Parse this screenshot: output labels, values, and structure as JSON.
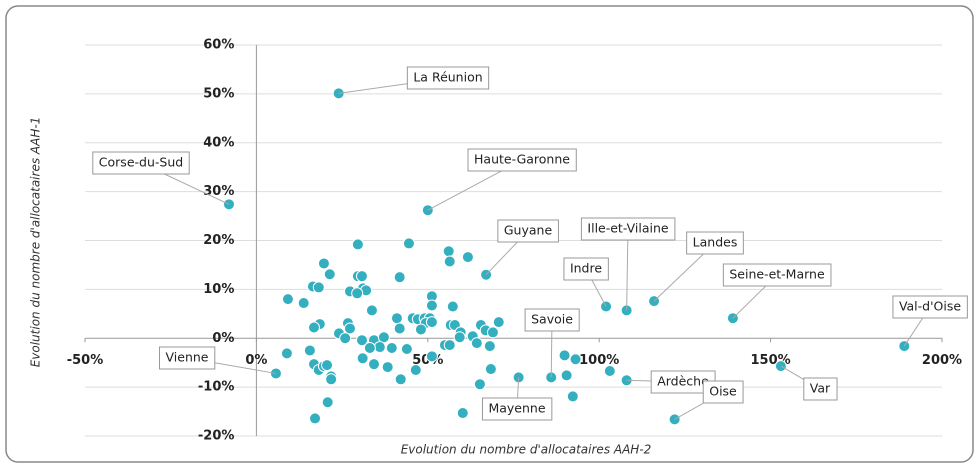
{
  "chart_data": {
    "type": "scatter",
    "x_label": "Evolution du nombre d'allocataires AAH-2",
    "y_label": "Evolution du nombre d'allocataires AAH-1",
    "color": "#33afbf",
    "grid": true,
    "xlim": [
      -50,
      200
    ],
    "ylim": [
      -20,
      60
    ],
    "xticks": [
      {
        "value": -50,
        "label": "-50%"
      },
      {
        "value": 0,
        "label": "0%"
      },
      {
        "value": 50,
        "label": "50%"
      },
      {
        "value": 100,
        "label": "100%"
      },
      {
        "value": 150,
        "label": "150%"
      },
      {
        "value": 200,
        "label": "200%"
      }
    ],
    "yticks": [
      {
        "value": -20,
        "label": "-20%"
      },
      {
        "value": -10,
        "label": "-10%"
      },
      {
        "value": 0,
        "label": "0%"
      },
      {
        "value": 10,
        "label": "10%"
      },
      {
        "value": 20,
        "label": "20%"
      },
      {
        "value": 30,
        "label": "30%"
      },
      {
        "value": 40,
        "label": "40%"
      },
      {
        "value": 50,
        "label": "50%"
      },
      {
        "value": 60,
        "label": "60%"
      }
    ],
    "labels": [
      "La Réunion",
      "Corse-du-Sud",
      "Haute-Garonne",
      "Guyane",
      "Indre",
      "Ille-et-Vilaine",
      "Landes",
      "Seine-et-Marne",
      "Val-d'Oise",
      "Vienne",
      "Savoie",
      "Ardèche",
      "Var",
      "Oise",
      "Mayenne",
      null,
      null,
      null,
      null,
      null,
      null,
      null,
      null,
      null,
      null,
      null,
      null,
      null,
      null,
      null,
      null,
      null,
      null,
      null,
      null,
      null,
      null,
      null,
      null,
      null,
      null,
      null,
      null,
      null,
      null,
      null,
      null,
      null,
      null,
      null,
      null,
      null,
      null,
      null,
      null,
      null,
      null,
      null,
      null,
      null,
      null,
      null,
      null,
      null,
      null,
      null,
      null,
      null,
      null,
      null,
      null,
      null,
      null,
      null,
      null,
      null,
      null,
      null,
      null,
      null,
      null,
      null,
      null,
      null,
      null,
      null,
      null,
      null,
      null,
      null,
      null,
      null,
      null,
      null,
      null,
      null
    ],
    "x": [
      24,
      -8,
      50,
      67,
      102,
      108,
      116,
      139,
      189,
      5.7,
      86,
      108,
      153,
      122,
      76.5,
      29.6,
      44.5,
      56.1,
      56.4,
      61.7,
      19.7,
      21.4,
      29.6,
      30.8,
      41.8,
      31.1,
      32,
      16.5,
      18.2,
      27.3,
      29.4,
      9.2,
      13.8,
      51.2,
      51.2,
      57.3,
      33.7,
      18.5,
      16.8,
      26.7,
      27.3,
      24.1,
      25.9,
      30.8,
      34.3,
      37.2,
      36,
      33.1,
      41,
      41.8,
      45.6,
      47.1,
      49.1,
      50.6,
      49.4,
      48,
      51.2,
      39.5,
      43.9,
      55,
      56.7,
      57.9,
      59.6,
      59.3,
      63.1,
      64.3,
      65.5,
      66.9,
      68.1,
      69,
      70.7,
      56.4,
      51.2,
      46.5,
      38.3,
      31,
      34.3,
      8.9,
      15.6,
      16.8,
      18.2,
      19.7,
      20.6,
      21.8,
      21.8,
      42.1,
      20.8,
      17.1,
      60.2,
      65.2,
      68.4,
      89.9,
      93.1,
      90.5,
      92.3,
      103.1
    ],
    "values": [
      50.1,
      27.4,
      26.2,
      13,
      6.5,
      5.7,
      7.6,
      4.1,
      -1.6,
      -7.2,
      -8,
      -8.6,
      -5.7,
      -16.6,
      -8,
      19.2,
      19.4,
      17.8,
      15.7,
      16.6,
      15.3,
      13.1,
      12.7,
      12.7,
      12.5,
      10.2,
      9.8,
      10.6,
      10.4,
      9.6,
      9.2,
      8,
      7.2,
      8.6,
      6.7,
      6.5,
      5.7,
      2.9,
      2.2,
      3.1,
      2,
      1,
      0,
      -0.4,
      -0.4,
      0.2,
      -1.8,
      -2,
      4.1,
      2,
      4.1,
      3.9,
      4.1,
      4.1,
      3.1,
      1.8,
      3.3,
      -2,
      -2.2,
      -1.4,
      2.7,
      2.7,
      1.2,
      0.2,
      0.4,
      -1,
      2.7,
      1.6,
      -1.6,
      1.2,
      3.3,
      -1.4,
      -3.7,
      -6.5,
      -5.9,
      -4.1,
      -5.3,
      -3.1,
      -2.5,
      -5.3,
      -6.5,
      -5.7,
      -5.5,
      -7.8,
      -8.4,
      -8.4,
      -13.1,
      -16.4,
      -15.3,
      -9.4,
      -6.3,
      -3.5,
      -4.3,
      -7.6,
      -11.9,
      -6.7
    ]
  }
}
